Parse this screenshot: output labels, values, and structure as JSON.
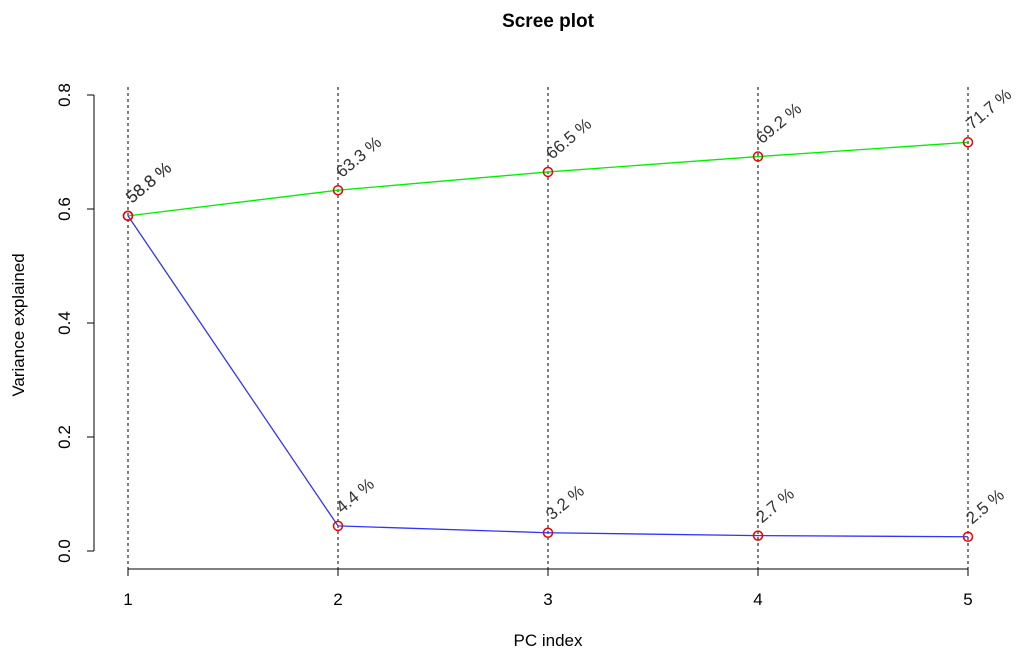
{
  "chart_data": {
    "type": "line",
    "title": "Scree plot",
    "xlabel": "PC index",
    "ylabel": "Variance explained",
    "x": [
      1,
      2,
      3,
      4,
      5
    ],
    "xticks": [
      "1",
      "2",
      "3",
      "4",
      "5"
    ],
    "yticks": [
      "0.0",
      "0.2",
      "0.4",
      "0.6",
      "0.8"
    ],
    "xlim": [
      1,
      5
    ],
    "ylim": [
      0,
      0.8
    ],
    "grid": "vertical dotted lines at each PC index",
    "series": [
      {
        "values": [
          0.588,
          0.633,
          0.665,
          0.692,
          0.717
        ],
        "labels": [
          "58.8 %",
          "63.3 %",
          "66.5 %",
          "69.2 %",
          "71.7 %"
        ],
        "color": "#00ee00"
      },
      {
        "values": [
          0.588,
          0.044,
          0.032,
          0.027,
          0.025
        ],
        "labels": [
          "58.8 %",
          "4.4 %",
          "3.2 %",
          "2.7 %",
          "2.5 %"
        ],
        "color": "#3333ff"
      }
    ],
    "marker_color": "#ee0000"
  }
}
